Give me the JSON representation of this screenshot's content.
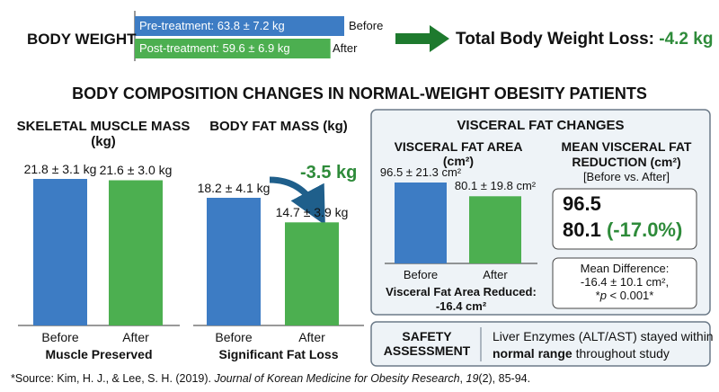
{
  "title": "BODY COMPOSITION CHANGES IN NORMAL-WEIGHT OBESITY PATIENTS",
  "chart_data": [
    {
      "type": "hbar",
      "title": "BODY WEIGHT",
      "categories": [
        "Before",
        "After"
      ],
      "values": [
        63.8,
        59.6
      ],
      "value_labels": [
        "Pre-treatment: 63.8 ± 7.2 kg",
        "Post-treatment: 59.6 ± 6.9 kg"
      ],
      "colors": [
        "#3d7cc4",
        "#4caf50"
      ],
      "annotation": {
        "label": "Total Body Weight Loss:",
        "value": "-4.2 kg"
      }
    },
    {
      "type": "bar",
      "title": "SKELETAL MUSCLE MASS (kg)",
      "categories": [
        "Before",
        "After"
      ],
      "values": [
        21.8,
        21.6
      ],
      "value_labels": [
        "21.8 ± 3.1 kg",
        "21.6 ± 3.0 kg"
      ],
      "colors": [
        "#3d7cc4",
        "#4caf50"
      ],
      "caption": "Muscle Preserved"
    },
    {
      "type": "bar",
      "title": "BODY FAT MASS (kg)",
      "categories": [
        "Before",
        "After"
      ],
      "values": [
        18.2,
        14.7
      ],
      "value_labels": [
        "18.2 ± 4.1 kg",
        "14.7 ± 3.9 kg"
      ],
      "colors": [
        "#3d7cc4",
        "#4caf50"
      ],
      "caption": "Significant Fat Loss",
      "annotation": "-3.5 kg"
    },
    {
      "type": "bar",
      "title": "VISCERAL FAT AREA (cm²)",
      "categories": [
        "Before",
        "After"
      ],
      "values": [
        96.5,
        80.1
      ],
      "value_labels": [
        "96.5 ± 21.3 cm²",
        "80.1 ± 19.8 cm²"
      ],
      "colors": [
        "#3d7cc4",
        "#4caf50"
      ],
      "caption": "Visceral Fat Area Reduced: -16.4 cm²"
    }
  ],
  "visceral_panel": {
    "title": "VISCERAL FAT CHANGES",
    "mean_title": "MEAN VISCERAL FAT REDUCTION (cm²)",
    "mean_subtitle": "[Before vs. After]",
    "before": "96.5",
    "after": "80.1",
    "percent": "(-17.0%)",
    "difference": [
      "Mean Difference:",
      "-16.4 ± 10.1 cm²,"
    ],
    "p_value": [
      "*",
      "p",
      " < 0.001*"
    ]
  },
  "safety": {
    "label": "SAFETY ASSESSMENT",
    "text": [
      "Liver Enzymes (ALT/AST) stayed within",
      "normal range",
      " throughout study"
    ]
  },
  "source": [
    "*Source: Kim, H. J., & Lee, S. H. (2019). ",
    "Journal of Korean Medicine for Obesity Research",
    ", ",
    "19",
    "(2), 85-94."
  ]
}
